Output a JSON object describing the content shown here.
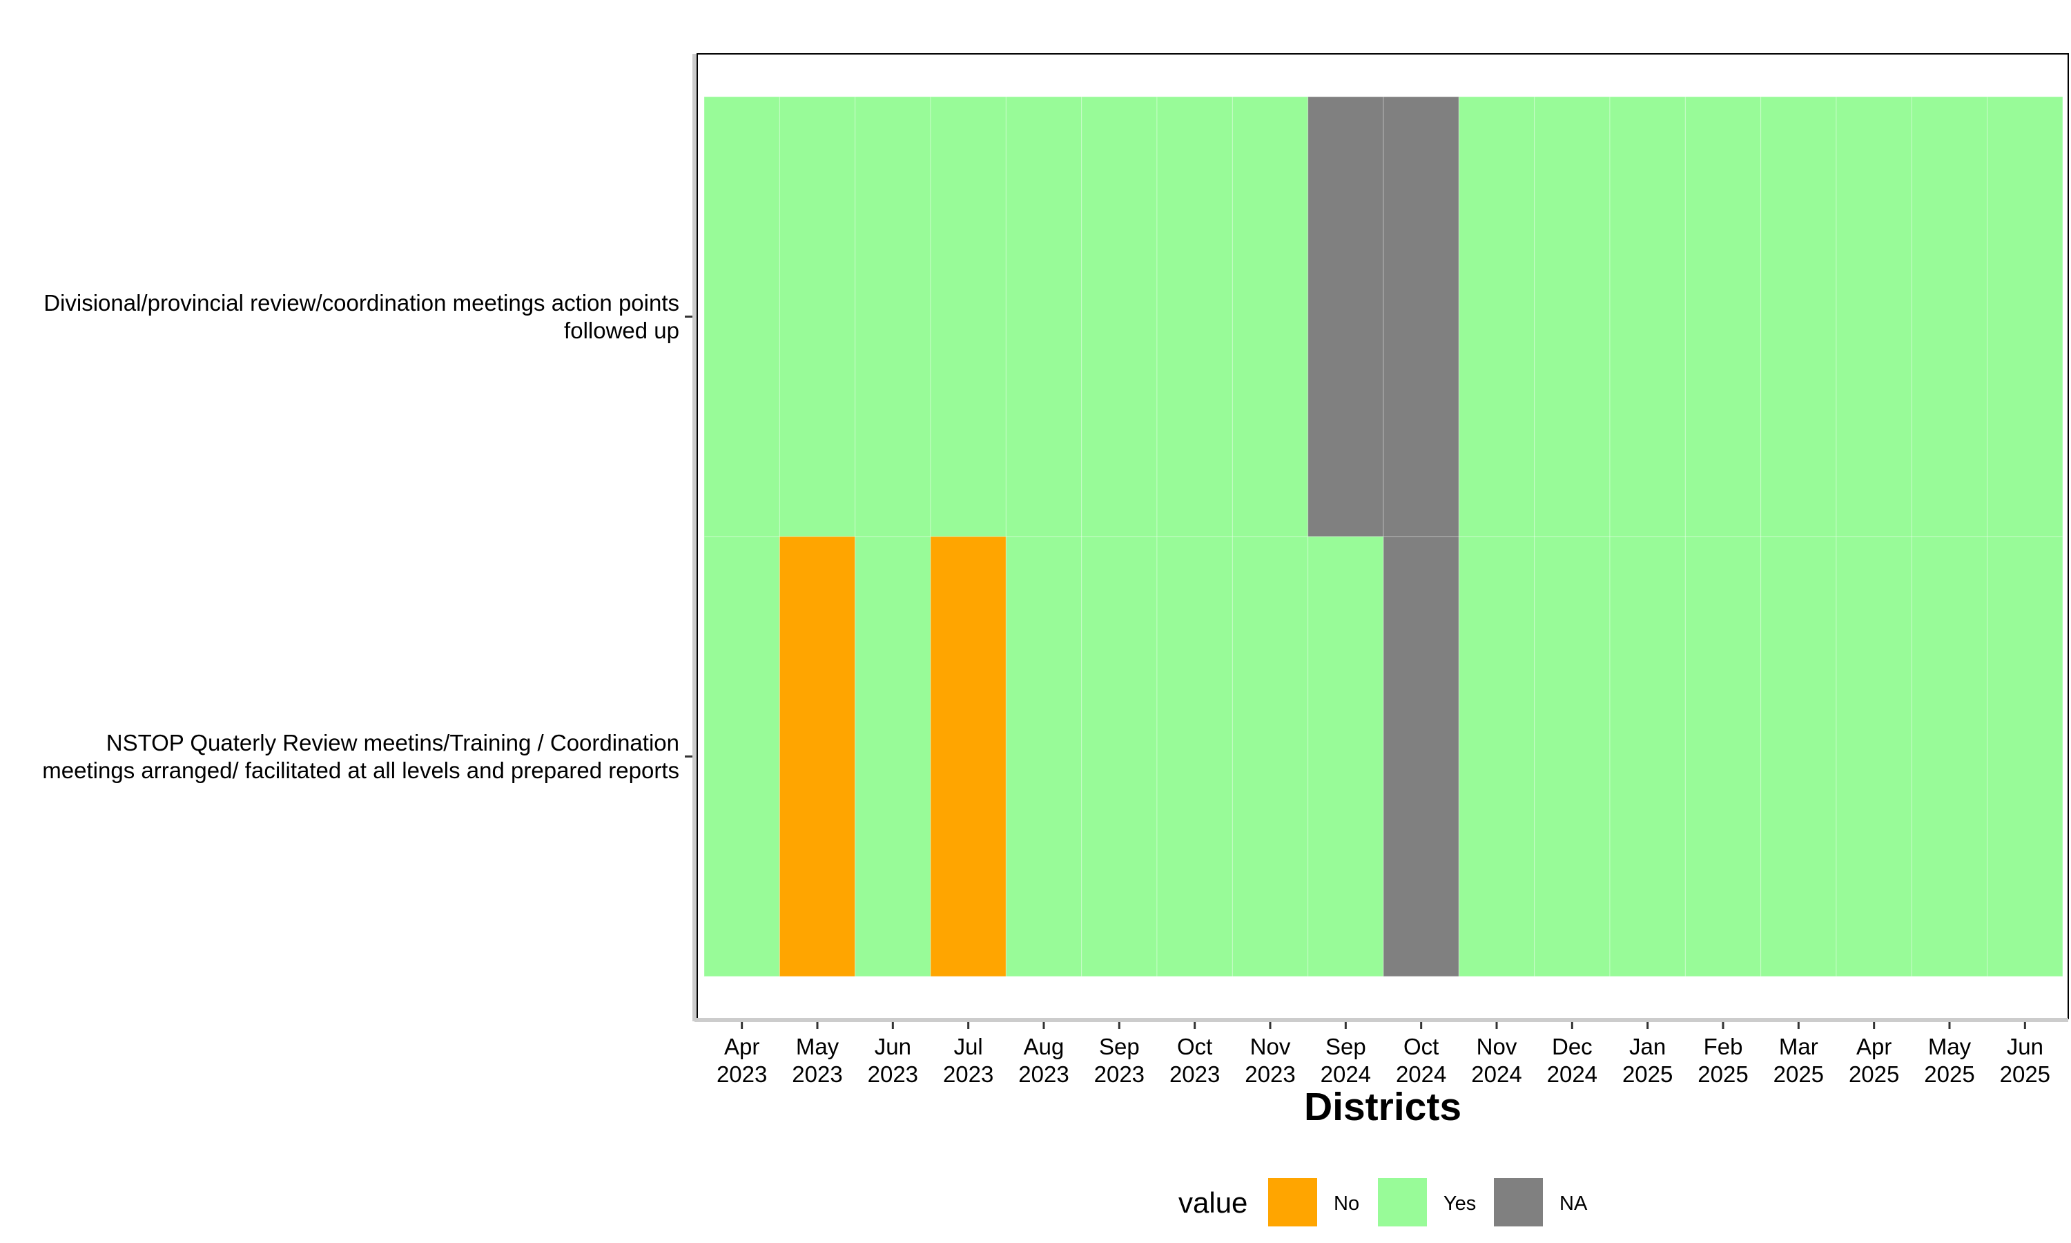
{
  "chart_data": {
    "type": "heatmap",
    "x_label": "Districts",
    "categories": [
      "Apr 2023",
      "May 2023",
      "Jun 2023",
      "Jul 2023",
      "Aug 2023",
      "Sep 2023",
      "Oct 2023",
      "Nov 2023",
      "Sep 2024",
      "Oct 2024",
      "Nov 2024",
      "Dec 2024",
      "Jan 2025",
      "Feb 2025",
      "Mar 2025",
      "Apr 2025",
      "May 2025",
      "Jun 2025"
    ],
    "rows": [
      "Divisional/provincial review/coordination meetings action points followed up",
      "NSTOP Quaterly Review meetins/Training / Coordination meetings arranged/ facilitated at all levels and prepared reports"
    ],
    "values": [
      [
        "Yes",
        "Yes",
        "Yes",
        "Yes",
        "Yes",
        "Yes",
        "Yes",
        "Yes",
        "NA",
        "NA",
        "Yes",
        "Yes",
        "Yes",
        "Yes",
        "Yes",
        "Yes",
        "Yes",
        "Yes"
      ],
      [
        "Yes",
        "No",
        "Yes",
        "No",
        "Yes",
        "Yes",
        "Yes",
        "Yes",
        "Yes",
        "NA",
        "Yes",
        "Yes",
        "Yes",
        "Yes",
        "Yes",
        "Yes",
        "Yes",
        "Yes"
      ]
    ],
    "legend_title": "value",
    "legend": [
      {
        "name": "No",
        "color": "#FFA500"
      },
      {
        "name": "Yes",
        "color": "#98FB98"
      },
      {
        "name": "NA",
        "color": "#808080"
      }
    ]
  }
}
